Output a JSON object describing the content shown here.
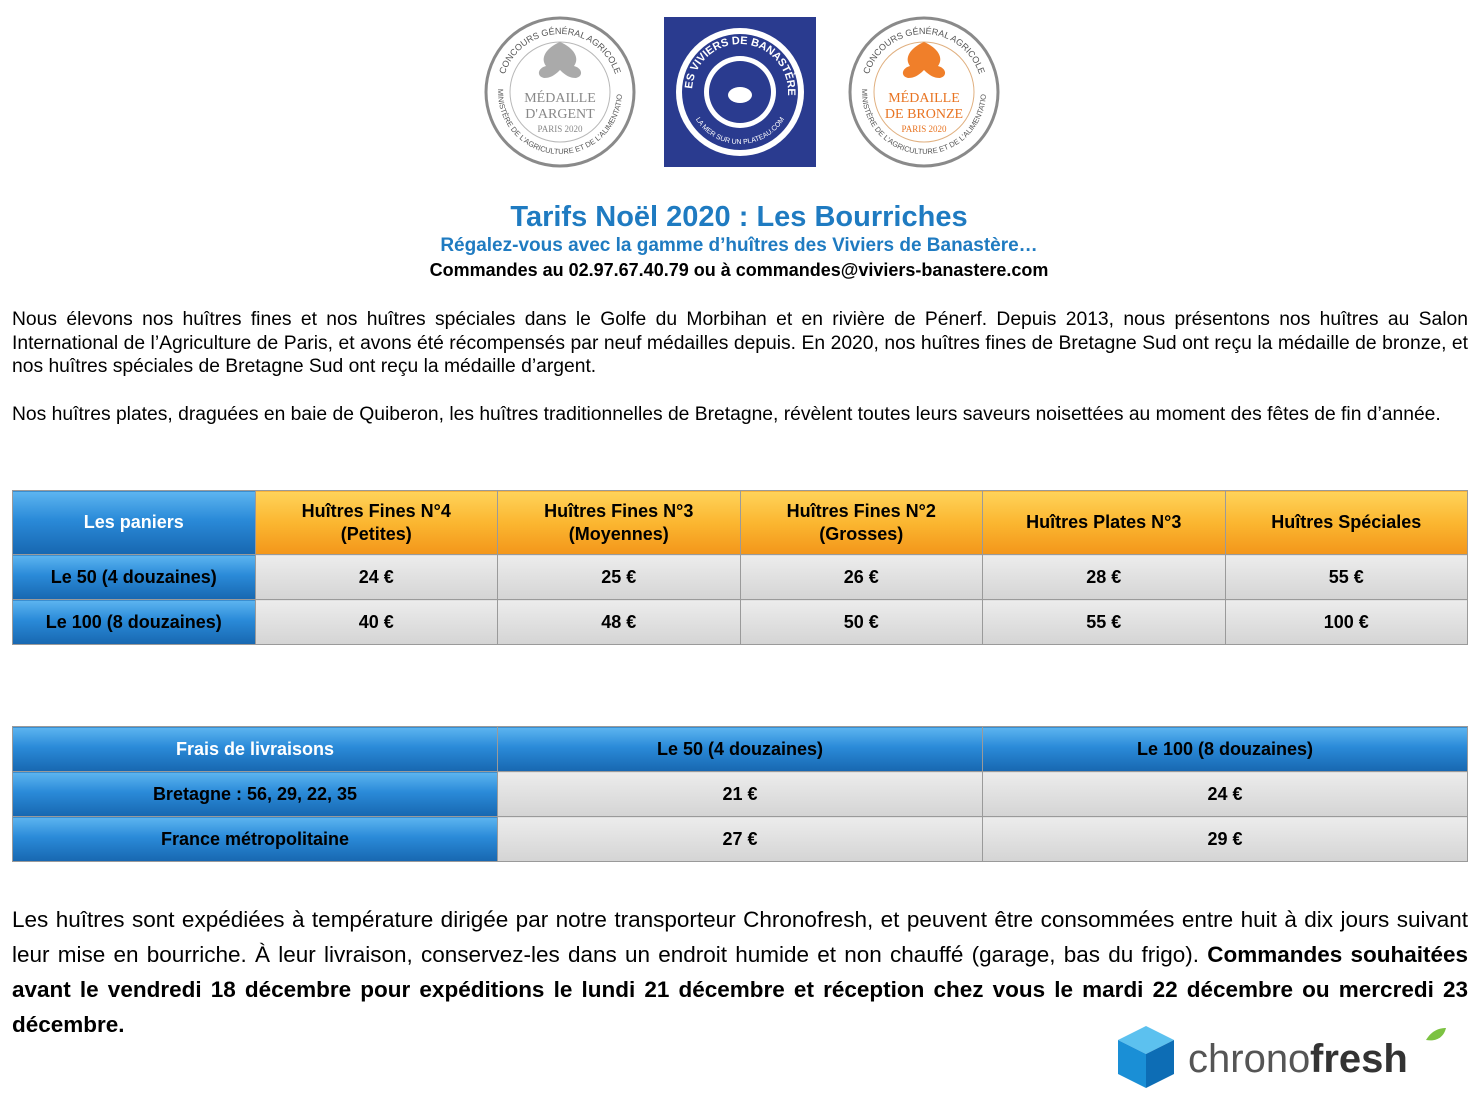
{
  "logos": {
    "silver": {
      "ring_top": "CONCOURS GÉNÉRAL AGRICOLE",
      "medal": "MÉDAILLE",
      "grade": "D'ARGENT",
      "city": "PARIS 2020",
      "ring_bottom": "MINISTÈRE DE L'AGRICULTURE ET DE L'ALIMENTATION"
    },
    "banastere": {
      "name": "LES VIVIERS DE BANASTÈRE",
      "tagline": "LA MER SUR UN PLATEAU.COM"
    },
    "bronze": {
      "ring_top": "CONCOURS GÉNÉRAL AGRICOLE",
      "medal": "MÉDAILLE",
      "grade": "DE BRONZE",
      "city": "PARIS 2020",
      "ring_bottom": "MINISTÈRE DE L'AGRICULTURE ET DE L'ALIMENTATION"
    }
  },
  "header": {
    "title": "Tarifs Noël 2020 : Les Bourriches",
    "subtitle": "Régalez-vous avec la gamme d’huîtres des Viviers de Banastère…",
    "contact": "Commandes au 02.97.67.40.79 ou à commandes@viviers-banastere.com"
  },
  "intro": [
    "Nous élevons nos huîtres fines et nos huîtres spéciales dans le Golfe du Morbihan et en rivière de Pénerf. Depuis 2013, nous présentons nos huîtres au Salon International de l’Agriculture de Paris, et avons été récompensés par neuf médailles depuis. En 2020, nos huîtres fines de Bretagne Sud ont reçu la médaille de bronze, et nos huîtres spéciales de Bretagne Sud ont reçu la médaille d’argent.",
    "Nos huîtres plates, draguées en baie de Quiberon, les huîtres traditionnelles de Bretagne, révèlent toutes leurs saveurs noisettées au moment des fêtes de fin d’année."
  ],
  "prices_table": {
    "header": [
      "Les paniers",
      "Huîtres Fines N°4\n(Petites)",
      "Huîtres Fines N°3\n(Moyennes)",
      "Huîtres Fines  N°2\n(Grosses)",
      "Huîtres Plates N°3",
      "Huîtres Spéciales"
    ],
    "rows": [
      [
        "Le 50 (4 douzaines)",
        "24 €",
        "25 €",
        "26 €",
        "28 €",
        "55 €"
      ],
      [
        "Le 100 (8 douzaines)",
        "40 €",
        "48 €",
        "50 €",
        "55 €",
        "100 €"
      ]
    ]
  },
  "delivery_table": {
    "header": [
      "Frais de livraisons",
      "Le 50 (4 douzaines)",
      "Le 100 (8 douzaines)"
    ],
    "rows": [
      [
        "Bretagne : 56, 29, 22, 35",
        "21 €",
        "24 €"
      ],
      [
        "France métropolitaine",
        "27 €",
        "29 €"
      ]
    ]
  },
  "footer": {
    "text": "Les huîtres sont expédiées à température dirigée par notre transporteur Chronofresh, et peuvent être consommées entre huit à dix jours suivant leur mise en bourriche. À leur livraison, conservez-les dans un endroit humide et non chauffé (garage, bas du frigo).",
    "bold": "Commandes souhaitées avant le vendredi 18 décembre pour expéditions le lundi 21 décembre et réception chez vous le mardi 22 décembre ou mercredi 23 décembre."
  },
  "chronofresh": {
    "chrono": "chrono",
    "fresh": "fresh"
  }
}
